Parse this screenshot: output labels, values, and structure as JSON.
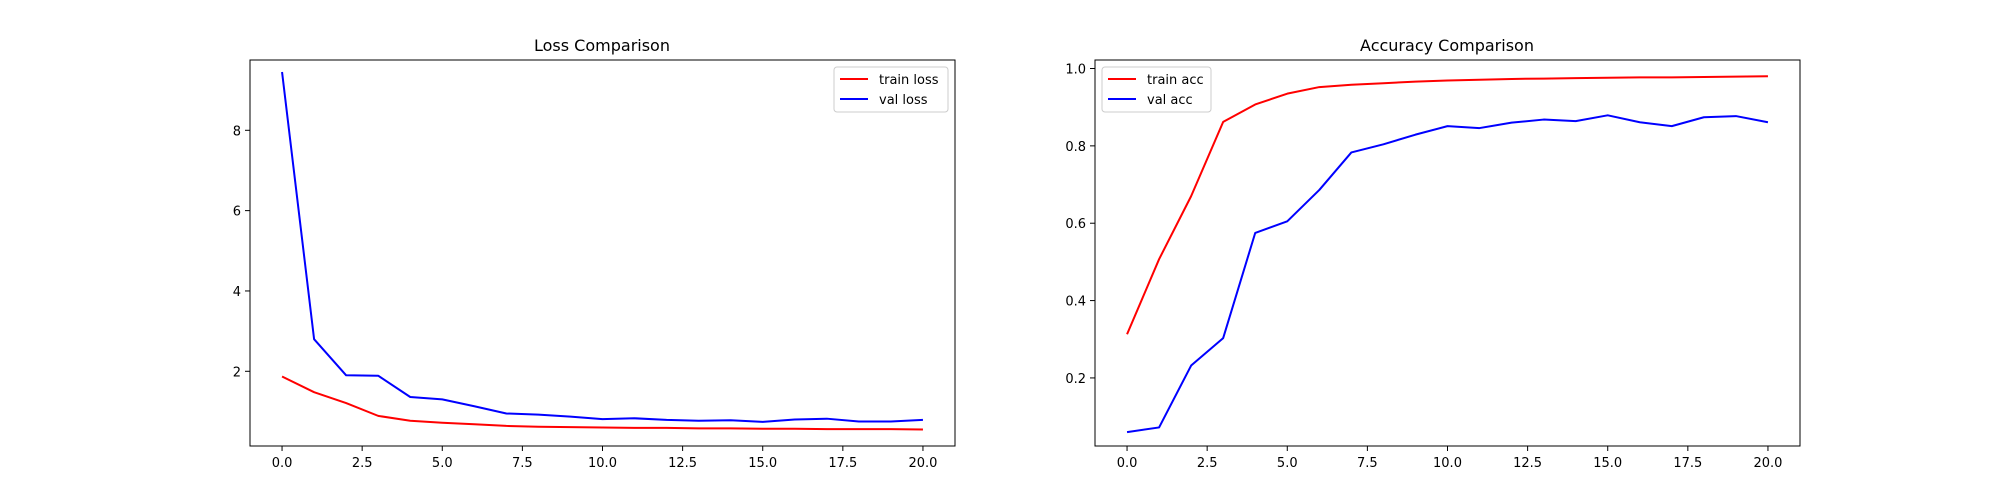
{
  "chart_data": [
    {
      "type": "line",
      "title": "Loss Comparison",
      "xlabel": "",
      "ylabel": "",
      "xlim": [
        -1.0,
        21.0
      ],
      "ylim": [
        0.14,
        9.75
      ],
      "xticks": [
        0.0,
        2.5,
        5.0,
        7.5,
        10.0,
        12.5,
        15.0,
        17.5,
        20.0
      ],
      "xtick_labels": [
        "0.0",
        "2.5",
        "5.0",
        "7.5",
        "10.0",
        "12.5",
        "15.0",
        "17.5",
        "20.0"
      ],
      "yticks": [
        2,
        4,
        6,
        8
      ],
      "ytick_labels": [
        "2",
        "4",
        "6",
        "8"
      ],
      "legend_position": "upper right",
      "grid": false,
      "x": [
        0,
        1,
        2,
        3,
        4,
        5,
        6,
        7,
        8,
        9,
        10,
        11,
        12,
        13,
        14,
        15,
        16,
        17,
        18,
        19,
        20
      ],
      "series": [
        {
          "name": "train loss",
          "color": "#ff0000",
          "values": [
            1.87,
            1.48,
            1.21,
            0.89,
            0.77,
            0.72,
            0.68,
            0.64,
            0.62,
            0.61,
            0.6,
            0.59,
            0.59,
            0.58,
            0.58,
            0.57,
            0.57,
            0.56,
            0.56,
            0.56,
            0.55
          ]
        },
        {
          "name": "val loss",
          "color": "#0000ff",
          "values": [
            9.45,
            2.8,
            1.9,
            1.89,
            1.36,
            1.3,
            1.13,
            0.95,
            0.92,
            0.87,
            0.81,
            0.83,
            0.79,
            0.77,
            0.78,
            0.74,
            0.8,
            0.82,
            0.75,
            0.75,
            0.79
          ]
        }
      ]
    },
    {
      "type": "line",
      "title": "Accuracy Comparison",
      "xlabel": "",
      "ylabel": "",
      "xlim": [
        -1.0,
        21.0
      ],
      "ylim": [
        0.024,
        1.022
      ],
      "xticks": [
        0.0,
        2.5,
        5.0,
        7.5,
        10.0,
        12.5,
        15.0,
        17.5,
        20.0
      ],
      "xtick_labels": [
        "0.0",
        "2.5",
        "5.0",
        "7.5",
        "10.0",
        "12.5",
        "15.0",
        "17.5",
        "20.0"
      ],
      "yticks": [
        0.2,
        0.4,
        0.6,
        0.8,
        1.0
      ],
      "ytick_labels": [
        "0.2",
        "0.4",
        "0.6",
        "0.8",
        "1.0"
      ],
      "legend_position": "upper left",
      "grid": false,
      "x": [
        0,
        1,
        2,
        3,
        4,
        5,
        6,
        7,
        8,
        9,
        10,
        11,
        12,
        13,
        14,
        15,
        16,
        17,
        18,
        19,
        20
      ],
      "series": [
        {
          "name": "train acc",
          "color": "#ff0000",
          "values": [
            0.313,
            0.507,
            0.67,
            0.862,
            0.907,
            0.935,
            0.952,
            0.958,
            0.962,
            0.966,
            0.969,
            0.971,
            0.973,
            0.974,
            0.975,
            0.976,
            0.977,
            0.977,
            0.978,
            0.979,
            0.98
          ]
        },
        {
          "name": "val acc",
          "color": "#0000ff",
          "values": [
            0.06,
            0.072,
            0.232,
            0.303,
            0.575,
            0.605,
            0.686,
            0.783,
            0.804,
            0.829,
            0.851,
            0.846,
            0.86,
            0.868,
            0.864,
            0.879,
            0.861,
            0.851,
            0.874,
            0.877,
            0.861
          ]
        }
      ]
    }
  ]
}
